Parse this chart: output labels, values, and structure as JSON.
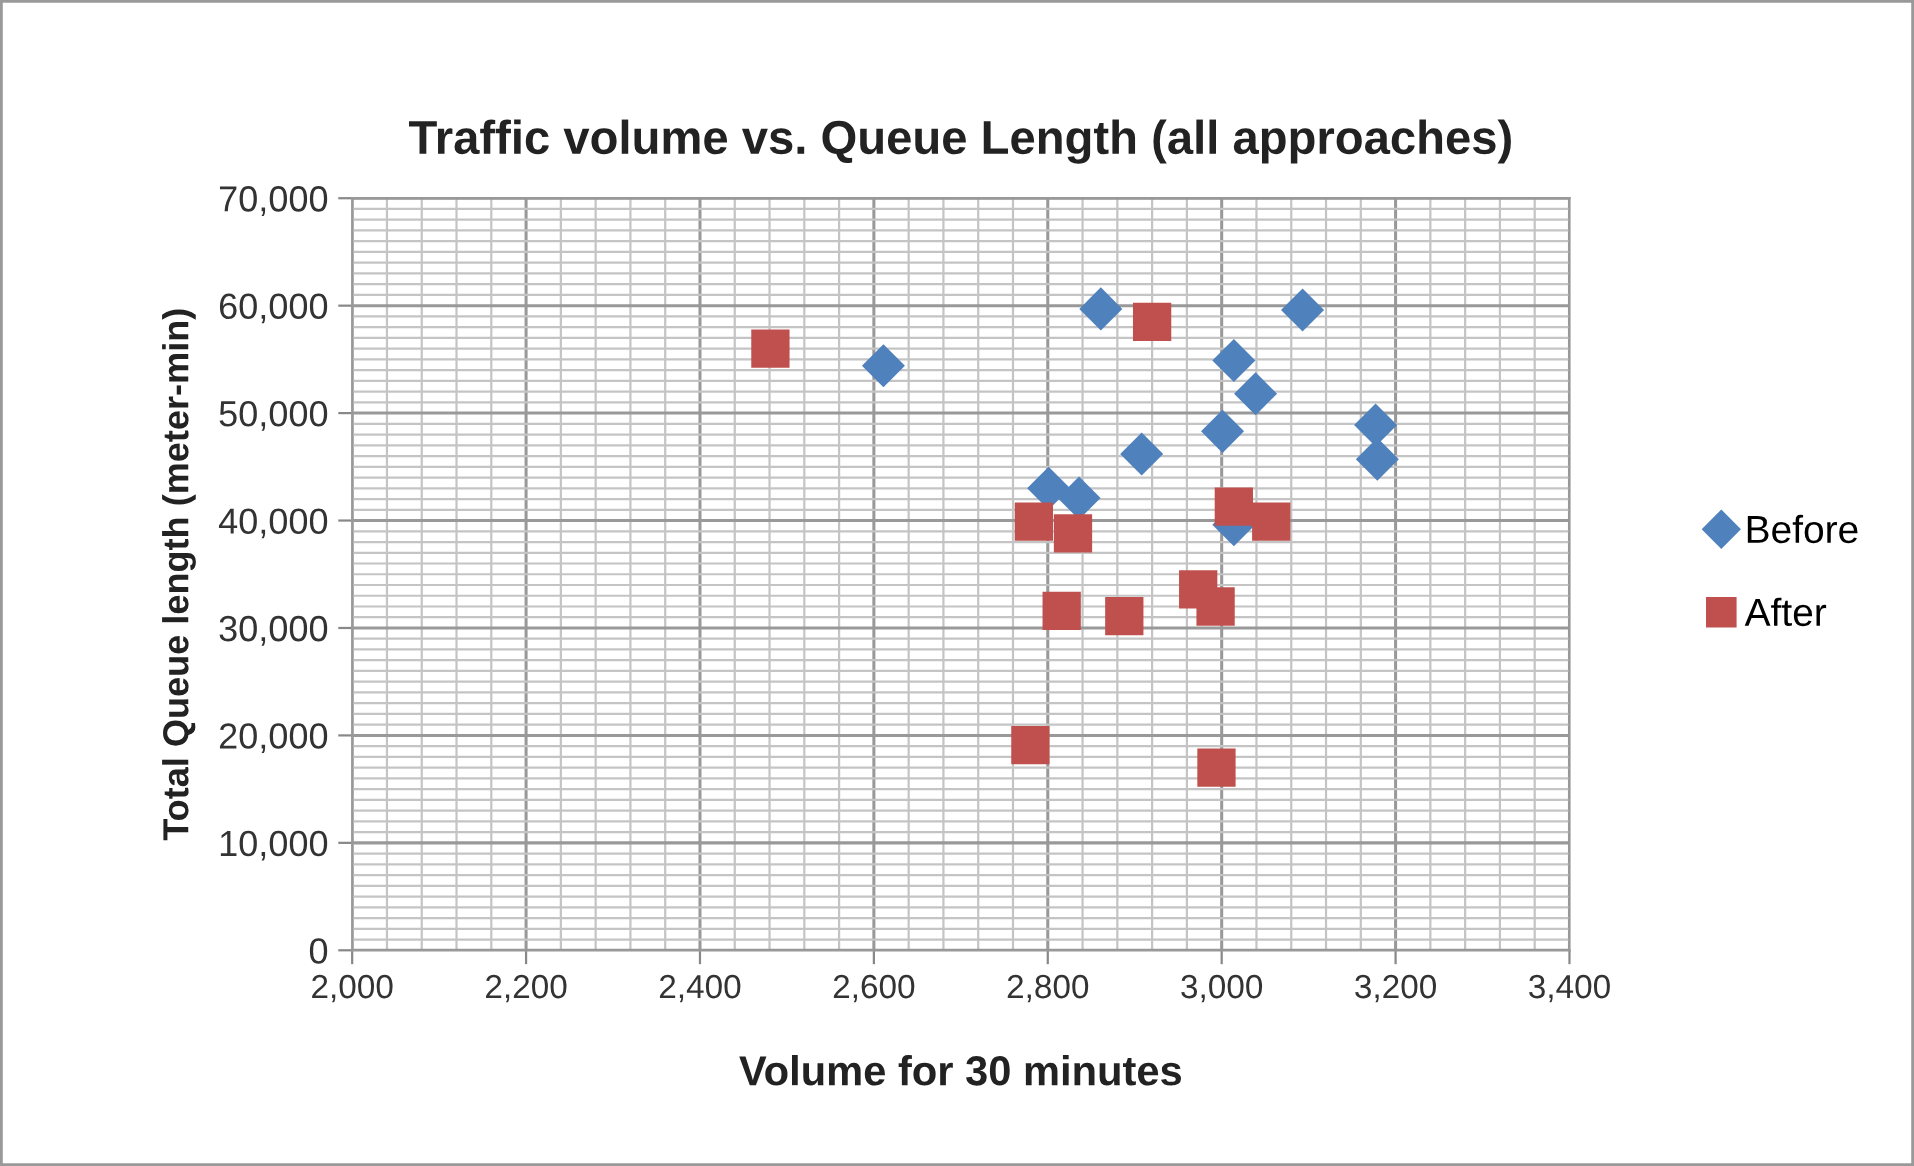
{
  "chart_data": {
    "type": "scatter",
    "title": "Traffic volume vs. Queue Length (all approaches)",
    "xlabel": "Volume for 30 minutes",
    "ylabel": "Total Queue length (meter-min)",
    "series": [
      {
        "name": "Before",
        "color": "#4f81bd",
        "marker": "diamond",
        "x": [
          2611,
          2861,
          3093,
          3014,
          3039,
          3001,
          3177,
          3179,
          2908,
          2801,
          2836,
          3014
        ],
        "values": [
          54400,
          59700,
          59600,
          54900,
          51800,
          48300,
          48900,
          45700,
          46200,
          43000,
          42100,
          39600
        ]
      },
      {
        "name": "After",
        "color": "#c0504d",
        "marker": "square",
        "x": [
          2481,
          2920,
          2784,
          2829,
          3014,
          3057,
          2816,
          2888,
          2973,
          2993,
          2780,
          2994
        ],
        "values": [
          56000,
          58500,
          39900,
          38800,
          41300,
          39900,
          31600,
          31100,
          33600,
          32000,
          19100,
          17000
        ]
      }
    ],
    "xlim": [
      2000,
      3400
    ],
    "xticks": [
      {
        "value": 2000,
        "label": "2,000"
      },
      {
        "value": 2200,
        "label": "2,200"
      },
      {
        "value": 2400,
        "label": "2,400"
      },
      {
        "value": 2600,
        "label": "2,600"
      },
      {
        "value": 2800,
        "label": "2,800"
      },
      {
        "value": 3000,
        "label": "3,000"
      },
      {
        "value": 3200,
        "label": "3,200"
      },
      {
        "value": 3400,
        "label": "3,400"
      }
    ],
    "ylim": [
      0,
      70000
    ],
    "yticks": [
      0,
      {
        "value": 10000,
        "label": "10,000"
      },
      {
        "value": 20000,
        "label": "20,000"
      },
      {
        "value": 30000,
        "label": "30,000"
      },
      {
        "value": 40000,
        "label": "40,000"
      },
      {
        "value": 50000,
        "label": "50,000"
      },
      {
        "value": 60000,
        "label": "60,000"
      },
      {
        "value": 70000,
        "label": "70,000"
      }
    ],
    "grid": true,
    "legend": "right"
  }
}
